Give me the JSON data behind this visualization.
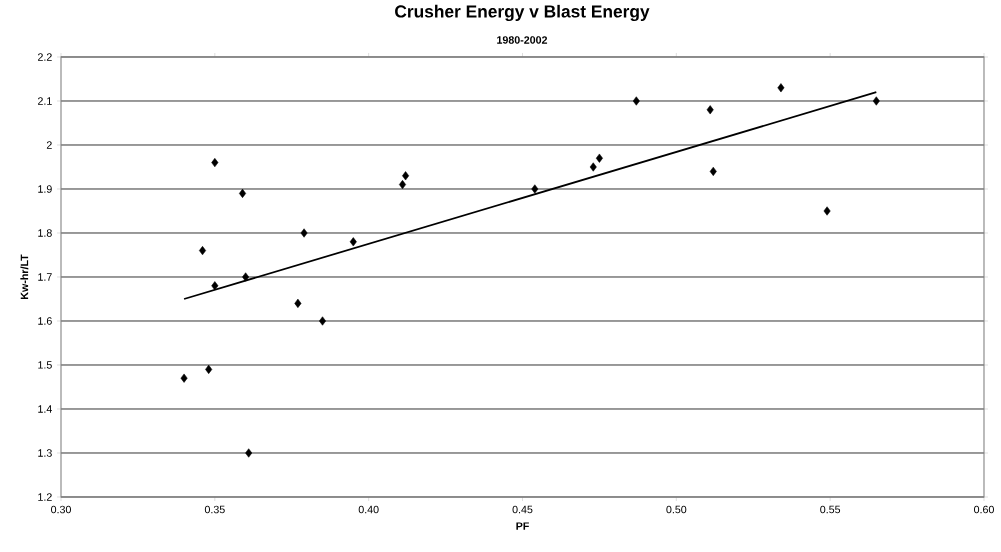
{
  "chart_data": {
    "type": "scatter",
    "title": "Crusher Energy v Blast Energy",
    "subtitle": "1980-2002",
    "xlabel": "PF",
    "ylabel": "Kw-hr/LT",
    "xlim": [
      0.3,
      0.6
    ],
    "ylim": [
      1.2,
      2.2
    ],
    "xticks": [
      {
        "value": 0.3,
        "label": "0.30"
      },
      {
        "value": 0.35,
        "label": "0.35"
      },
      {
        "value": 0.4,
        "label": "0.40"
      },
      {
        "value": 0.45,
        "label": "0.45"
      },
      {
        "value": 0.5,
        "label": "0.50"
      },
      {
        "value": 0.55,
        "label": "0.55"
      },
      {
        "value": 0.6,
        "label": "0.60"
      }
    ],
    "yticks": [
      1.2,
      1.3,
      1.4,
      1.5,
      1.6,
      1.7,
      1.8,
      1.9,
      2,
      2.1,
      2.2
    ],
    "grid": "y",
    "series": [
      {
        "marker": "diamond",
        "color": "#000000",
        "x": [
          0.35,
          0.359,
          0.379,
          0.395,
          0.346,
          0.35,
          0.36,
          0.377,
          0.385,
          0.34,
          0.348,
          0.361,
          0.412,
          0.411,
          0.454,
          0.473,
          0.475,
          0.487,
          0.511,
          0.534,
          0.565,
          0.512,
          0.549
        ],
        "values": [
          1.96,
          1.89,
          1.8,
          1.78,
          1.76,
          1.68,
          1.7,
          1.64,
          1.6,
          1.47,
          1.49,
          1.3,
          1.93,
          1.91,
          1.9,
          1.95,
          1.97,
          2.1,
          2.08,
          2.13,
          2.1,
          1.94,
          1.85
        ]
      },
      {
        "type": "line",
        "marker": "none",
        "color": "#000000",
        "x": [
          0.34,
          0.565
        ],
        "values": [
          1.65,
          2.12
        ]
      }
    ]
  }
}
